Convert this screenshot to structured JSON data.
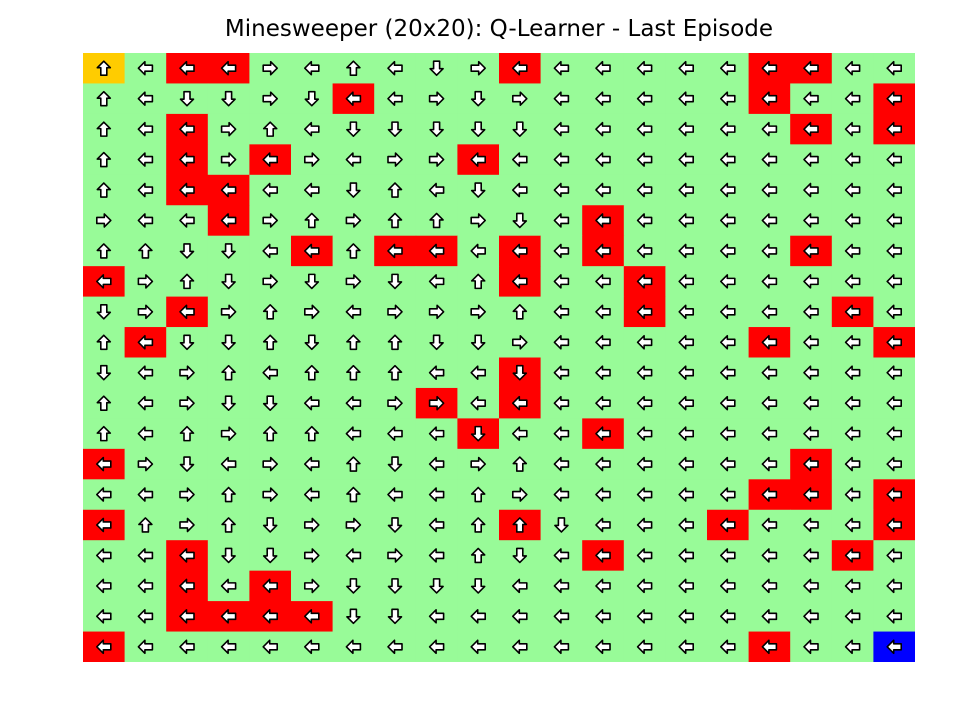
{
  "title": "Minesweeper (20x20): Q-Learner - Last Episode",
  "colors": {
    "safe": "#98FB98",
    "mine": "#FF0000",
    "start": "#FFCC00",
    "goal": "#0000FF",
    "arrow_fill": "#FFFFFF",
    "arrow_stroke": "#000000"
  },
  "cell_legend": {
    "S": "start",
    "G": "goal",
    "M": "mine",
    ".": "safe"
  },
  "arrow_legend": {
    "U": "up-arrow-icon",
    "D": "down-arrow-icon",
    "L": "left-arrow-icon",
    "R": "right-arrow-icon"
  },
  "grid": {
    "rows": 20,
    "cols": 20,
    "cells": [
      "S.MM......M.....MM..",
      "......M.........M..M",
      "..M..............M.M",
      "..M.M....M..........",
      "..MM................",
      "...M........M.......",
      ".....M.MM.M.M....M..",
      "M.........M..M......",
      "..M..........M....M.",
      ".M..............M..M",
      "..........M.........",
      "........M.M.........",
      ".........M..M.......",
      "M................M..",
      "................MM.M",
      "M.........M....M...M",
      "..M.........M.....M.",
      "..M.M...............",
      "..MMMM..............",
      "M...............M..G"
    ],
    "actions": [
      "ULLLRLULDRLLLLLLLLLL",
      "ULDDRDLLRDRLLLLLLLLL",
      "ULLRULDDDDDLLLLLLLLL",
      "ULLRLRLRRLLLLLLLLLLL",
      "ULLLLLDULDLLLLLLLLLL",
      "RLLLRURUURDLLLLLLLLL",
      "UUDDLLULLLLLLLLLLLLL",
      "LRUDRDRDLULLLLLLLLLL",
      "DRLRURLRRRULLLLLLLLL",
      "ULDDUDUUDDRLLLLLLLLL",
      "DLRULUUULLDLLLLLLLLL",
      "ULRDDLLRRLLLLLLLLLLL",
      "ULURUULLLDLLLLLLLLLL",
      "LRDLRLUDLRULLLLLLLLL",
      "LLRURLULLURLLLLLLLLL",
      "LURUDRRDLUUDLLLLLLLL",
      "LLLDDRLRLUDLLLLLLLLL",
      "LLLLLRDDDDLLLLLLLLLL",
      "LLLLLLDDLLLLLLLLLLLL",
      "LLLLLLLLLLLLLLLLLLLL"
    ]
  }
}
